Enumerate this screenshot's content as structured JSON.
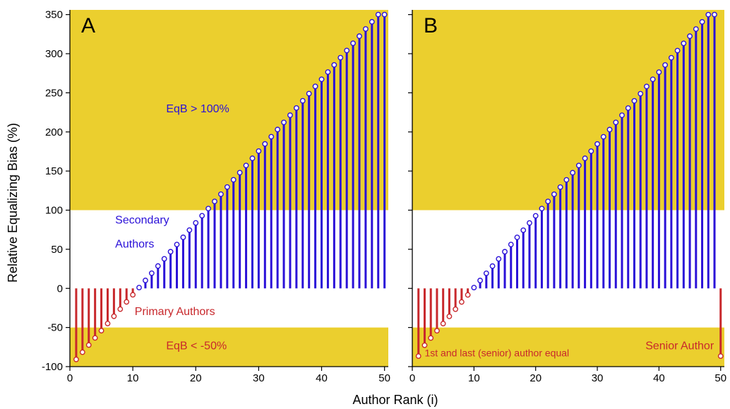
{
  "chart_data": {
    "type": "bar",
    "ylabel": "Relative Equalizing Bias (%)",
    "xlabel": "Author Rank (i)",
    "xlim": [
      0,
      50.6
    ],
    "ylim": [
      -100,
      356
    ],
    "xticks": [
      "0",
      "10",
      "20",
      "30",
      "40",
      "50"
    ],
    "yticks": [
      "350",
      "300",
      "250",
      "200",
      "150",
      "100",
      "50",
      "0",
      "-50",
      "-100"
    ],
    "colors": {
      "positive": "#2a10d8",
      "negative": "#c8282c",
      "band": "#ebcf2e",
      "marker_fill": "#ffffff"
    },
    "panels": [
      {
        "label": "A",
        "band_thresholds": [
          100,
          -50
        ],
        "annotations": {
          "upper_band": "EqB > 100%",
          "secondary_1": "Secondary",
          "secondary_2": "Authors",
          "primary": "Primary Authors",
          "lower_band": "EqB < -50%"
        },
        "series": {
          "x": [
            1,
            2,
            3,
            4,
            5,
            6,
            7,
            8,
            9,
            10,
            11,
            12,
            13,
            14,
            15,
            16,
            17,
            18,
            19,
            20,
            21,
            22,
            23,
            24,
            25,
            26,
            27,
            28,
            29,
            30,
            31,
            32,
            33,
            34,
            35,
            36,
            37,
            38,
            39,
            40,
            41,
            42,
            43,
            44,
            45,
            46,
            47,
            48,
            49,
            50
          ],
          "y": [
            -90.8,
            -81.6,
            -72.4,
            -63.3,
            -54.1,
            -44.9,
            -35.7,
            -26.5,
            -17.3,
            -8.2,
            1.0,
            10.2,
            19.4,
            28.6,
            37.8,
            46.9,
            56.1,
            65.3,
            74.5,
            83.7,
            92.9,
            102.0,
            111.2,
            120.4,
            129.6,
            138.8,
            148.0,
            157.1,
            166.3,
            175.5,
            184.7,
            193.9,
            203.1,
            212.2,
            221.4,
            230.6,
            239.8,
            249.0,
            258.2,
            267.3,
            276.5,
            285.7,
            294.9,
            304.1,
            313.3,
            322.4,
            331.6,
            340.8,
            350.0,
            350.0
          ]
        }
      },
      {
        "label": "B",
        "band_thresholds": [
          100,
          -50
        ],
        "annotations": {
          "first_last": "1st and last (senior) author equal",
          "senior": "Senior Author"
        },
        "series": {
          "x": [
            1,
            2,
            3,
            4,
            5,
            6,
            7,
            8,
            9,
            10,
            11,
            12,
            13,
            14,
            15,
            16,
            17,
            18,
            19,
            20,
            21,
            22,
            23,
            24,
            25,
            26,
            27,
            28,
            29,
            30,
            31,
            32,
            33,
            34,
            35,
            36,
            37,
            38,
            39,
            40,
            41,
            42,
            43,
            44,
            45,
            46,
            47,
            48,
            49,
            50
          ],
          "y": [
            -86.6,
            -72.7,
            -63.4,
            -54.2,
            -45.0,
            -35.8,
            -26.6,
            -17.4,
            -8.3,
            1.0,
            10.1,
            19.3,
            28.5,
            37.7,
            46.9,
            56.1,
            65.2,
            74.4,
            83.6,
            92.8,
            102.0,
            111.2,
            120.3,
            129.5,
            138.7,
            147.9,
            157.1,
            166.3,
            175.4,
            184.6,
            193.8,
            203.0,
            212.2,
            221.3,
            230.5,
            239.7,
            248.9,
            258.1,
            267.3,
            276.4,
            285.6,
            294.8,
            304.0,
            313.2,
            322.4,
            331.5,
            340.7,
            349.9,
            350.0,
            -86.6
          ]
        }
      }
    ]
  }
}
